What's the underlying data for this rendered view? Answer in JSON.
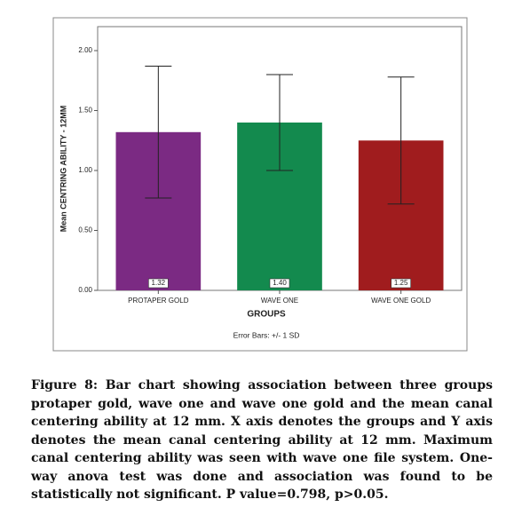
{
  "chart_data": {
    "type": "bar",
    "categories": [
      "PROTAPER GOLD",
      "WAVE ONE",
      "WAVE ONE GOLD"
    ],
    "values": [
      1.32,
      1.4,
      1.25
    ],
    "value_labels": [
      "1.32",
      "1.40",
      "1.25"
    ],
    "errors": [
      0.55,
      0.4,
      0.53
    ],
    "colors": [
      "#7b2a83",
      "#138a4e",
      "#a01c1e"
    ],
    "ylim": [
      0,
      2.2
    ],
    "yticks": [
      {
        "value": 0,
        "label": "0.00"
      },
      {
        "value": 0.5,
        "label": "0.50"
      },
      {
        "value": 1,
        "label": "1.00"
      },
      {
        "value": 1.5,
        "label": "1.50"
      },
      {
        "value": 2,
        "label": "2.00"
      }
    ],
    "xlabel": "GROUPS",
    "ylabel": "Mean CENTRING ABILITY - 12MM",
    "note": "Error Bars: +/- 1 SD"
  },
  "caption": "Figure 8: Bar chart showing association between three groups protaper gold, wave one and wave one gold and the mean canal centering ability at 12 mm. X axis denotes the groups and Y axis denotes the mean canal centering ability at 12 mm. Maximum canal centering ability was seen with wave one file system. One-way anova test was done and association was found to be statistically not significant. P value=0.798, p>0.05."
}
